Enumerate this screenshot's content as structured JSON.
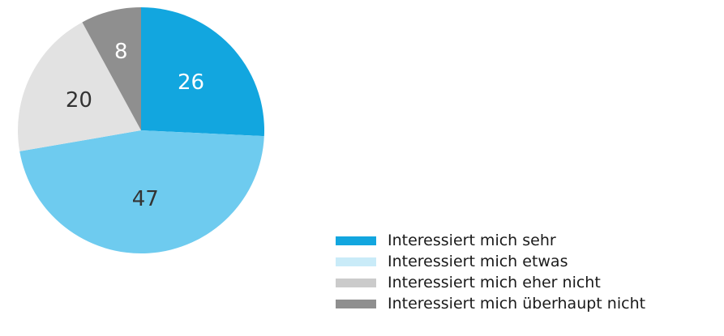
{
  "chart_data": {
    "type": "pie",
    "title": "",
    "categories": [
      "Interessiert mich sehr",
      "Interessiert mich etwas",
      "Interessiert mich eher nicht",
      "Interessiert mich überhaupt nicht"
    ],
    "values": [
      26,
      47,
      20,
      8
    ],
    "slice_labels": [
      "26",
      "47",
      "20",
      "8"
    ],
    "colors": [
      "#12a6df",
      "#6ecbef",
      "#e2e2e2",
      "#8f8f8f"
    ],
    "legend_colors": [
      "#12a6df",
      "#c9ebf8",
      "#cbcbcb",
      "#8f8f8f"
    ],
    "label_colors": [
      "#ffffff",
      "#333333",
      "#333333",
      "#ffffff"
    ],
    "start": "12 o'clock",
    "direction": "clockwise",
    "legend_position": "bottom-right"
  }
}
